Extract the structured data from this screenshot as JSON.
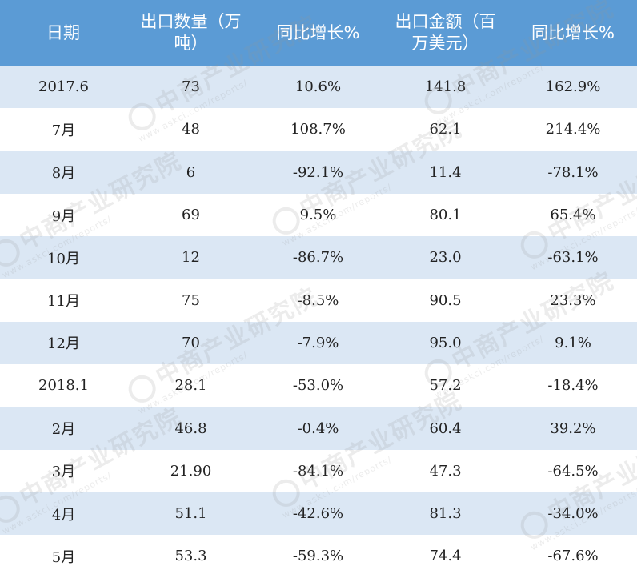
{
  "table": {
    "headers": [
      "日期",
      "出口数量（万\n吨）",
      "同比增长%",
      "出口金额（百\n万美元）",
      "同比增长%"
    ],
    "rows": [
      [
        "2017.6",
        "73",
        "10.6%",
        "141.8",
        "162.9%"
      ],
      [
        "7月",
        "48",
        "108.7%",
        "62.1",
        "214.4%"
      ],
      [
        "8月",
        "6",
        "-92.1%",
        "11.4",
        "-78.1%"
      ],
      [
        "9月",
        "69",
        "9.5%",
        "80.1",
        "65.4%"
      ],
      [
        "10月",
        "12",
        "-86.7%",
        "23.0",
        "-63.1%"
      ],
      [
        "11月",
        "75",
        "-8.5%",
        "90.5",
        "23.3%"
      ],
      [
        "12月",
        "70",
        "-7.9%",
        "95.0",
        "9.1%"
      ],
      [
        "2018.1",
        "28.1",
        "-53.0%",
        "57.2",
        "-18.4%"
      ],
      [
        "2月",
        "46.8",
        "-0.4%",
        "60.4",
        "39.2%"
      ],
      [
        "3月",
        "21.90",
        "-84.1%",
        "47.3",
        "-64.5%"
      ],
      [
        "4月",
        "51.1",
        "-42.6%",
        "81.3",
        "-34.0%"
      ],
      [
        "5月",
        "53.3",
        "-59.3%",
        "74.4",
        "-67.6%"
      ]
    ]
  },
  "watermark": {
    "brand": "中商产业研究院",
    "url": "www.askci.com/reports/"
  },
  "colors": {
    "header_bg": "#5b9bd5",
    "alt_row_bg": "#dbe7f4",
    "header_text": "#ffffff",
    "body_text": "#222222"
  }
}
